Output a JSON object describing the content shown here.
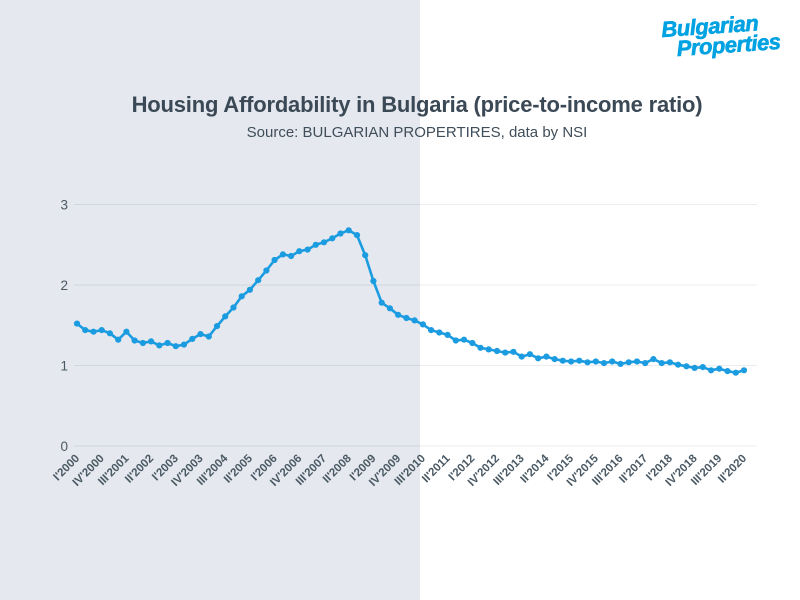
{
  "page": {
    "background_left": "#e5e8ee",
    "background_right": "#ffffff",
    "split_x": 420
  },
  "logo": {
    "line1": "Bulgarian",
    "line2": "Properties",
    "color": "#00A2E2"
  },
  "header": {
    "title": "Housing Affordability in Bulgaria (price-to-income ratio)",
    "subtitle": "Source: BULGARIAN PROPERTIRES, data by NSI"
  },
  "chart_data": {
    "type": "line",
    "title": "Housing Affordability in Bulgaria (price-to-income ratio)",
    "subtitle": "Source: BULGARIAN PROPERTIRES, data by NSI",
    "xlabel": "",
    "ylabel": "",
    "ylim": [
      0,
      3
    ],
    "y_ticks": [
      0,
      1,
      2,
      3
    ],
    "y_tick_labels": [
      "0",
      "1",
      "2",
      "3"
    ],
    "grid": true,
    "legend_position": "none",
    "line_color": "#1C9CE0",
    "marker": "circle",
    "axis_text_color": "#4a5964",
    "grid_color_left": "#d0d6de",
    "grid_color_right": "#ececf0",
    "x_tick_step": 3,
    "x_tick_labels": [
      "I'2000",
      "IV'2000",
      "III'2001",
      "II'2002",
      "I'2003",
      "IV'2003",
      "III'2004",
      "II'2005",
      "I'2006",
      "IV'2006",
      "III'2007",
      "II'2008",
      "I'2009",
      "IV'2009",
      "III'2010",
      "II'2011",
      "I'2012",
      "IV'2012",
      "III'2013",
      "II'2014",
      "I'2015",
      "IV'2015",
      "III'2016",
      "II'2017",
      "I'2018",
      "IV'2018",
      "III'2019",
      "II'2020"
    ],
    "x": [
      "I'2000",
      "II'2000",
      "III'2000",
      "IV'2000",
      "I'2001",
      "II'2001",
      "III'2001",
      "IV'2001",
      "I'2002",
      "II'2002",
      "III'2002",
      "IV'2002",
      "I'2003",
      "II'2003",
      "III'2003",
      "IV'2003",
      "I'2004",
      "II'2004",
      "III'2004",
      "IV'2004",
      "I'2005",
      "II'2005",
      "III'2005",
      "IV'2005",
      "I'2006",
      "II'2006",
      "III'2006",
      "IV'2006",
      "I'2007",
      "II'2007",
      "III'2007",
      "IV'2007",
      "I'2008",
      "II'2008",
      "III'2008",
      "IV'2008",
      "I'2009",
      "II'2009",
      "III'2009",
      "IV'2009",
      "I'2010",
      "II'2010",
      "III'2010",
      "IV'2010",
      "I'2011",
      "II'2011",
      "III'2011",
      "IV'2011",
      "I'2012",
      "II'2012",
      "III'2012",
      "IV'2012",
      "I'2013",
      "II'2013",
      "III'2013",
      "IV'2013",
      "I'2014",
      "II'2014",
      "III'2014",
      "IV'2014",
      "I'2015",
      "II'2015",
      "III'2015",
      "IV'2015",
      "I'2016",
      "II'2016",
      "III'2016",
      "IV'2016",
      "I'2017",
      "II'2017",
      "III'2017",
      "IV'2017",
      "I'2018",
      "II'2018",
      "III'2018",
      "IV'2018",
      "I'2019",
      "II'2019",
      "III'2019",
      "IV'2019",
      "I'2020",
      "II'2020"
    ],
    "values": [
      1.52,
      1.44,
      1.42,
      1.44,
      1.4,
      1.32,
      1.42,
      1.31,
      1.28,
      1.3,
      1.25,
      1.28,
      1.24,
      1.26,
      1.33,
      1.39,
      1.36,
      1.49,
      1.61,
      1.72,
      1.86,
      1.94,
      2.06,
      2.18,
      2.31,
      2.38,
      2.36,
      2.42,
      2.44,
      2.5,
      2.53,
      2.58,
      2.64,
      2.68,
      2.62,
      2.37,
      2.05,
      1.78,
      1.71,
      1.63,
      1.59,
      1.56,
      1.51,
      1.44,
      1.41,
      1.38,
      1.31,
      1.32,
      1.28,
      1.22,
      1.2,
      1.18,
      1.16,
      1.17,
      1.11,
      1.14,
      1.09,
      1.11,
      1.08,
      1.06,
      1.05,
      1.06,
      1.04,
      1.05,
      1.03,
      1.05,
      1.02,
      1.04,
      1.05,
      1.03,
      1.08,
      1.03,
      1.04,
      1.01,
      0.99,
      0.97,
      0.98,
      0.94,
      0.96,
      0.93,
      0.91,
      0.94
    ]
  }
}
